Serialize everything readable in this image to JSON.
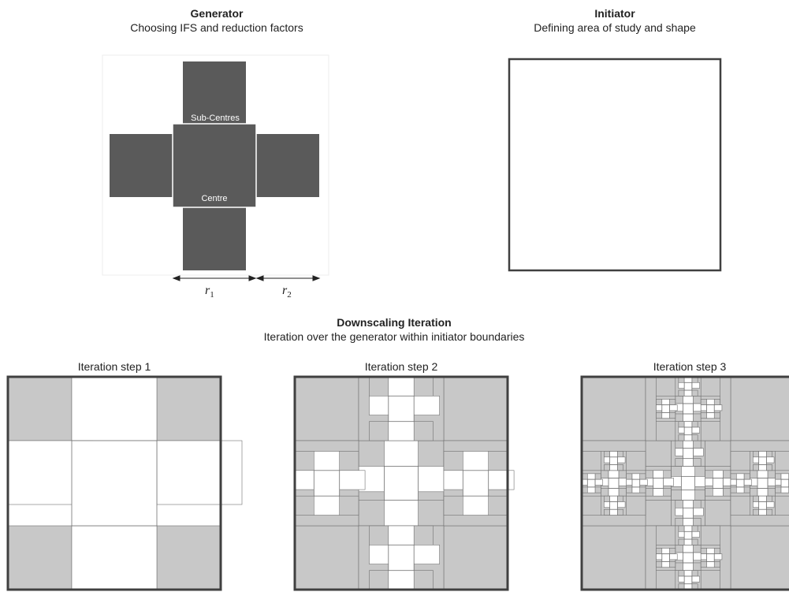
{
  "generator": {
    "title": "Generator",
    "subtitle": "Choosing IFS and reduction factors",
    "label_subcentres": "Sub-Centres",
    "label_centre": "Centre",
    "r1_base": "r",
    "r1_sub": "1",
    "r2_base": "r",
    "r2_sub": "2"
  },
  "initiator": {
    "title": "Initiator",
    "subtitle": "Defining area of study and shape"
  },
  "downscaling": {
    "title": "Downscaling Iteration",
    "subtitle": "Iteration over the generator within initiator boundaries"
  },
  "steps": [
    {
      "label": "Iteration step 1",
      "depth": 1
    },
    {
      "label": "Iteration step 2",
      "depth": 2
    },
    {
      "label": "Iteration step 3",
      "depth": 3
    }
  ],
  "colors": {
    "generator_fill": "#5a5a5a",
    "grey_fill": "#c8c8c8",
    "white_fill": "#ffffff",
    "frame": "#404040",
    "cell_line": "#707070"
  }
}
